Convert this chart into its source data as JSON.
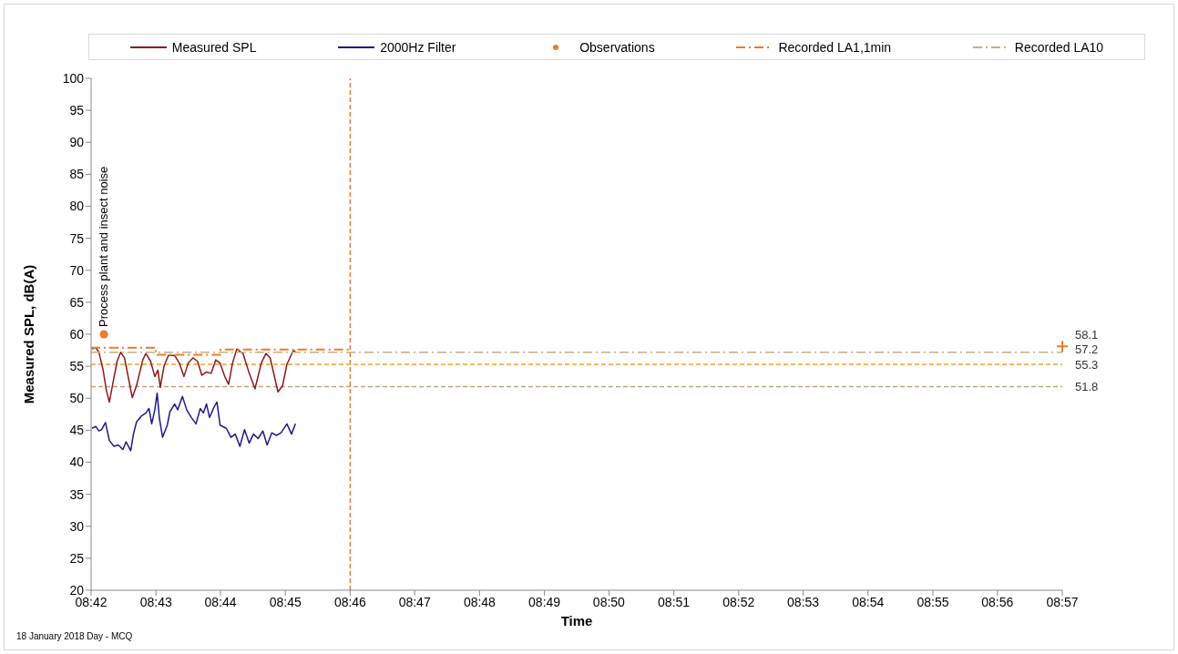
{
  "chart_data": {
    "type": "line",
    "xlabel": "Time",
    "ylabel": "Measured SPL, dB(A)",
    "xlim": [
      8.7,
      8.95
    ],
    "ylim": [
      20,
      100
    ],
    "xticks": [
      {
        "value": 8.7,
        "label": "08:42"
      },
      {
        "value": 8.7167,
        "label": "08:43"
      },
      {
        "value": 8.7333,
        "label": "08:44"
      },
      {
        "value": 8.75,
        "label": "08:45"
      },
      {
        "value": 8.7667,
        "label": "08:46"
      },
      {
        "value": 8.7833,
        "label": "08:47"
      },
      {
        "value": 8.8,
        "label": "08:48"
      },
      {
        "value": 8.8167,
        "label": "08:49"
      },
      {
        "value": 8.8333,
        "label": "08:50"
      },
      {
        "value": 8.85,
        "label": "08:51"
      },
      {
        "value": 8.8667,
        "label": "08:52"
      },
      {
        "value": 8.8833,
        "label": "08:53"
      },
      {
        "value": 8.9,
        "label": "08:54"
      },
      {
        "value": 8.9167,
        "label": "08:55"
      },
      {
        "value": 8.9333,
        "label": "08:56"
      },
      {
        "value": 8.95,
        "label": "08:57"
      }
    ],
    "yticks": [
      20,
      25,
      30,
      35,
      40,
      45,
      50,
      55,
      60,
      65,
      70,
      75,
      80,
      85,
      90,
      95,
      100
    ],
    "grid": false,
    "legend": "top",
    "series": [
      {
        "name": "Measured SPL",
        "color": "#8b1a1a",
        "marker": "none",
        "line_style": "solid",
        "x": [
          8.7002,
          8.7012,
          8.702,
          8.7031,
          8.7039,
          8.7047,
          8.7055,
          8.7067,
          8.7076,
          8.7086,
          8.7106,
          8.7117,
          8.7133,
          8.7141,
          8.7153,
          8.7164,
          8.7172,
          8.7178,
          8.7188,
          8.7199,
          8.7215,
          8.7227,
          8.7239,
          8.725,
          8.7262,
          8.7274,
          8.7285,
          8.7297,
          8.7309,
          8.7321,
          8.7332,
          8.7344,
          8.7354,
          8.7364,
          8.7375,
          8.7391,
          8.7407,
          8.7422,
          8.7438,
          8.745,
          8.7461,
          8.7481,
          8.7493,
          8.7504,
          8.752,
          8.7526
        ],
        "values": [
          57.7,
          57.9,
          57.2,
          54.4,
          51.3,
          49.4,
          52.0,
          55.8,
          57.2,
          56.3,
          50.1,
          52.0,
          56.0,
          57.0,
          55.8,
          53.4,
          54.4,
          51.7,
          55.1,
          56.7,
          56.7,
          55.5,
          53.4,
          55.5,
          56.3,
          55.8,
          53.6,
          54.1,
          53.9,
          56.0,
          55.5,
          53.4,
          52.2,
          55.5,
          57.7,
          57.0,
          53.9,
          51.5,
          55.5,
          57.0,
          56.3,
          51.0,
          52.0,
          55.3,
          57.4,
          57.4
        ]
      },
      {
        "name": "2000Hz Filter",
        "color": "#1a1a8c",
        "marker": "none",
        "line_style": "solid",
        "x": [
          8.7002,
          8.7012,
          8.702,
          8.7027,
          8.7037,
          8.7047,
          8.7059,
          8.707,
          8.7082,
          8.709,
          8.7102,
          8.7109,
          8.7117,
          8.7129,
          8.7141,
          8.7149,
          8.7156,
          8.7164,
          8.717,
          8.7176,
          8.7184,
          8.7196,
          8.7203,
          8.7215,
          8.7223,
          8.7235,
          8.7246,
          8.7258,
          8.727,
          8.7281,
          8.7289,
          8.7297,
          8.7305,
          8.7317,
          8.7324,
          8.7332,
          8.7348,
          8.736,
          8.7371,
          8.7383,
          8.7395,
          8.7407,
          8.7418,
          8.743,
          8.7442,
          8.7453,
          8.7465,
          8.7477,
          8.7489,
          8.7504,
          8.7516,
          8.7526
        ],
        "values": [
          45.3,
          45.6,
          44.9,
          45.1,
          46.2,
          43.4,
          42.5,
          42.7,
          42.0,
          43.2,
          41.8,
          44.4,
          46.3,
          47.2,
          47.7,
          48.4,
          46.0,
          48.2,
          50.8,
          46.8,
          43.9,
          45.8,
          47.9,
          49.1,
          48.2,
          50.3,
          48.2,
          47.0,
          46.0,
          48.4,
          47.7,
          49.1,
          47.0,
          48.7,
          49.4,
          45.8,
          45.3,
          43.9,
          44.4,
          42.5,
          45.1,
          43.0,
          44.4,
          43.7,
          44.9,
          42.7,
          44.6,
          44.2,
          44.6,
          46.0,
          44.4,
          46.0
        ]
      },
      {
        "name": "Observations",
        "type": "scatter",
        "color": "#f07a28",
        "marker": "circle",
        "x": [
          8.7033
        ],
        "values": [
          60.0
        ]
      },
      {
        "name": "Recorded LA1,1min",
        "type": "step",
        "color": "#f07a28",
        "marker": "none",
        "line_style": "dashed",
        "x": [
          8.7,
          8.7167,
          8.7333,
          8.7667
        ],
        "values": [
          57.9,
          56.8,
          57.6,
          57.6
        ]
      },
      {
        "name": "Recorded LA10",
        "type": "line",
        "color": "#c4ad88",
        "marker": "none",
        "line_style": "dashed",
        "x": [
          8.7,
          8.95
        ],
        "values": [
          57.2,
          57.2
        ],
        "value_labels": [
          null,
          "57.2"
        ]
      },
      {
        "type": "scatter",
        "color": "#f07a28",
        "marker": "cross",
        "x": [
          8.95
        ],
        "values": [
          58.1
        ],
        "value_labels": [
          "58.1"
        ]
      }
    ],
    "ref_lines": [
      {
        "axis": "y",
        "value": 55.3,
        "label": "55.3",
        "color": "#f5a02a",
        "line_style": "dashed"
      },
      {
        "axis": "y",
        "value": 51.8,
        "label": "51.8",
        "color": "#c8a27a",
        "line_style": "dashed"
      },
      {
        "axis": "x",
        "value": 8.7667,
        "color": "#e07b39",
        "line_style": "dashed"
      }
    ],
    "annotations": [
      {
        "text": "Process plant and insect noise",
        "x": 8.7033,
        "y": 60.0
      },
      "18 January 2018 Day - MCQ"
    ]
  }
}
